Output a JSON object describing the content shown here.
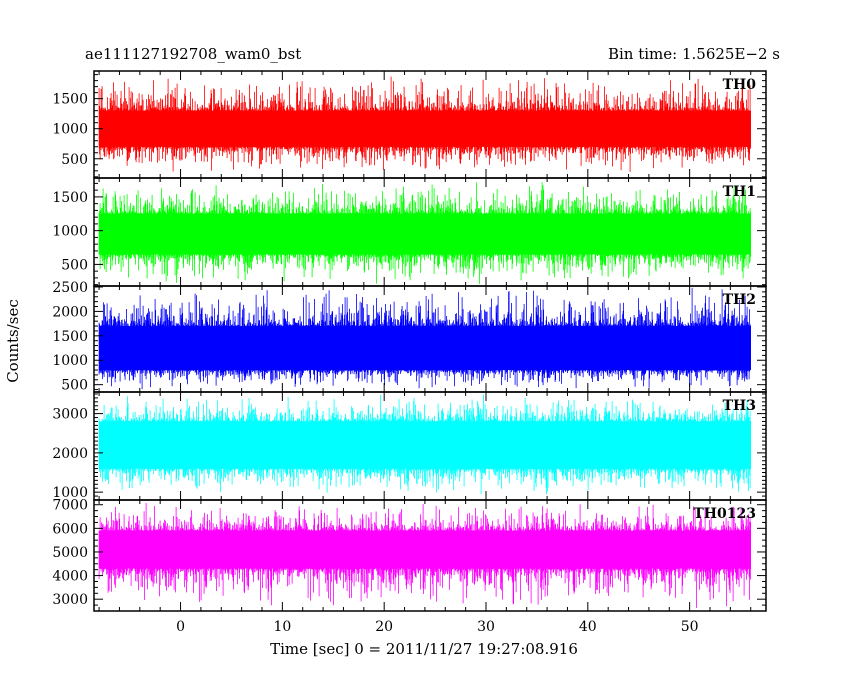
{
  "header": {
    "title": "ae111127192708_wam0_bst",
    "bin_time": "Bin time: 1.5625E−2 s"
  },
  "chart_data": {
    "type": "line",
    "title": "ae111127192708_wam0_bst",
    "subtitle": "Bin time: 1.5625E−2 s",
    "xlabel": "Time [sec] 0 = 2011/11/27 19:27:08.916",
    "ylabel": "Counts/sec",
    "xlim": [
      -8.5,
      57.5
    ],
    "x_ticks": [
      "0",
      "10",
      "20",
      "30",
      "40",
      "50"
    ],
    "x_data_range": [
      -8.0,
      56.0
    ],
    "bin_time_s": 0.015625,
    "grid": false,
    "panels": [
      {
        "name": "TH0",
        "color": "#ff0000",
        "ylim": [
          180,
          1960
        ],
        "y_ticks": [
          "500",
          "1000",
          "1500"
        ],
        "envelope": {
          "typical_low": 700,
          "typical_high": 1300,
          "min": 250,
          "max": 1900
        }
      },
      {
        "name": "TH1",
        "color": "#00ff00",
        "ylim": [
          180,
          1780
        ],
        "y_ticks": [
          "500",
          "1000",
          "1500"
        ],
        "envelope": {
          "typical_low": 650,
          "typical_high": 1250,
          "min": 200,
          "max": 1750
        }
      },
      {
        "name": "TH2",
        "color": "#0000ff",
        "ylim": [
          350,
          2520
        ],
        "y_ticks": [
          "500",
          "1000",
          "1500",
          "2000",
          "2500"
        ],
        "envelope": {
          "typical_low": 800,
          "typical_high": 1700,
          "min": 400,
          "max": 2500
        }
      },
      {
        "name": "TH3",
        "color": "#00ffff",
        "ylim": [
          800,
          3550
        ],
        "y_ticks": [
          "1000",
          "2000",
          "3000"
        ],
        "envelope": {
          "typical_low": 1600,
          "typical_high": 2800,
          "min": 900,
          "max": 3500
        }
      },
      {
        "name": "TH0123",
        "color": "#ff00ff",
        "ylim": [
          2500,
          7200
        ],
        "y_ticks": [
          "3000",
          "4000",
          "5000",
          "6000",
          "7000"
        ],
        "envelope": {
          "typical_low": 4300,
          "typical_high": 5900,
          "min": 2600,
          "max": 7100
        }
      }
    ]
  }
}
